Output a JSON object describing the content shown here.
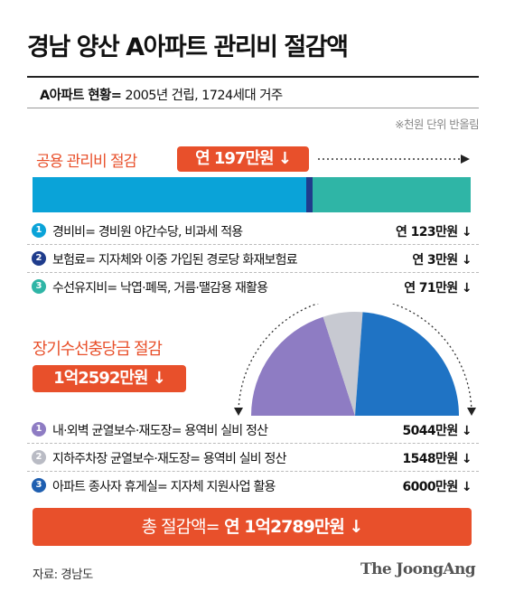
{
  "title": "경남 양산 A아파트 관리비 절감액",
  "info": {
    "label": "A아파트 현황=",
    "text": " 2005년 건립, 1724세대 거주"
  },
  "rounding_note": "※천원 단위 반올림",
  "common_section": {
    "label": "공용 관리비 절감",
    "badge": "연 197만원 ↓",
    "shares": [
      123,
      3,
      71
    ],
    "colors": [
      "#0aa3d8",
      "#1f3c8c",
      "#2fb5a6"
    ],
    "items": [
      {
        "num": "1",
        "label": "경비비= 경비원 야간수당, 비과세 적용",
        "value": "연 123만원 ↓",
        "color": "#0aa3d8"
      },
      {
        "num": "2",
        "label": "보험료= 지자체와 이중 가입된 경로당 화재보험료",
        "value": "연 3만원 ↓",
        "color": "#1f3c8c"
      },
      {
        "num": "3",
        "label": "수선유지비= 낙엽·폐목, 거름·땔감용 재활용",
        "value": "연 71만원 ↓",
        "color": "#2fb5a6"
      }
    ]
  },
  "longterm_section": {
    "label": "장기수선충당금 절감",
    "badge": "1억2592만원 ↓",
    "shares": [
      5044,
      1548,
      6000
    ],
    "colors": [
      "#8e7cc3",
      "#c7c9d1",
      "#1f73c4"
    ],
    "items": [
      {
        "num": "1",
        "label": "내·외벽 균열보수·재도장= 용역비 실비 정산",
        "value": "5044만원 ↓",
        "color": "#8e7cc3"
      },
      {
        "num": "2",
        "label": "지하주차장 균열보수·재도장= 용역비 실비 정산",
        "value": "1548만원 ↓",
        "color": "#b9bbc4"
      },
      {
        "num": "3",
        "label": "아파트 종사자 휴게실= 지자체 지원사업 활용",
        "value": "6000만원 ↓",
        "color": "#1f5fb0"
      }
    ]
  },
  "total": {
    "label": "총 절감액=",
    "value": " 연 1억2789만원 ↓"
  },
  "source": "자료: 경남도",
  "brand": "The JoongAng"
}
